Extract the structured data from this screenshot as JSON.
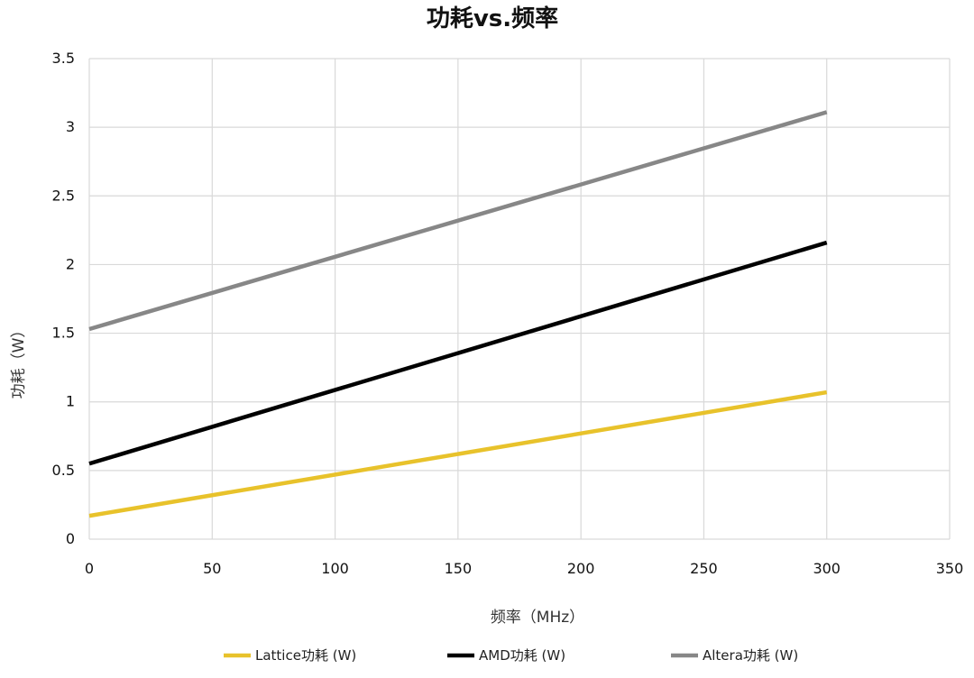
{
  "chart_data": {
    "type": "line",
    "title": "功耗vs.频率",
    "xlabel": "频率（MHz）",
    "ylabel": "功耗（W）",
    "xlim": [
      0,
      350
    ],
    "ylim": [
      0,
      3.5
    ],
    "x_ticks": [
      "0",
      "50",
      "100",
      "150",
      "200",
      "250",
      "300",
      "350"
    ],
    "y_ticks": [
      "0",
      "0.5",
      "1",
      "1.5",
      "2",
      "2.5",
      "3",
      "3.5"
    ],
    "grid": true,
    "legend_position": "bottom",
    "series": [
      {
        "name": "Lattice功耗 (W)",
        "color": "#e8c22b",
        "x": [
          0,
          300
        ],
        "values": [
          0.17,
          1.07
        ]
      },
      {
        "name": "AMD功耗 (W)",
        "color": "#000000",
        "x": [
          0,
          300
        ],
        "values": [
          0.55,
          2.16
        ]
      },
      {
        "name": "Altera功耗 (W)",
        "color": "#878787",
        "x": [
          0,
          300
        ],
        "values": [
          1.53,
          3.11
        ]
      }
    ]
  }
}
